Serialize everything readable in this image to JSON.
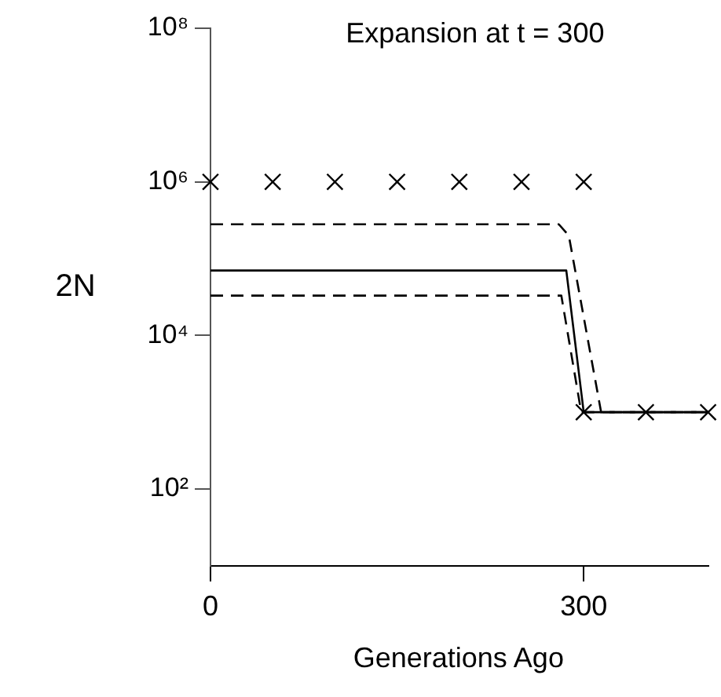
{
  "chart_data": {
    "type": "line",
    "title": "Expansion at t = 300",
    "xlabel": "Generations Ago",
    "ylabel": "2N",
    "log": "y",
    "grid": false,
    "legend": false,
    "xlim": [
      0,
      400
    ],
    "xticks": [
      0,
      300
    ],
    "ylim": [
      10,
      100000000
    ],
    "yticks": [
      {
        "value": 100,
        "label": "10²"
      },
      {
        "value": 10000,
        "label": "10⁴"
      },
      {
        "value": 1000000,
        "label": "10⁶"
      },
      {
        "value": 100000000,
        "label": "10⁸"
      }
    ],
    "series": [
      {
        "type": "scatter",
        "marker": "cross",
        "color": "#000000",
        "x": [
          0,
          50,
          100,
          150,
          200,
          250,
          300,
          300,
          350,
          400
        ],
        "values": [
          1000000,
          1000000,
          1000000,
          1000000,
          1000000,
          1000000,
          1000000,
          1000,
          1000,
          1000
        ]
      },
      {
        "type": "line",
        "marker": "none",
        "line_style": "solid",
        "color": "#000000",
        "x": [
          0,
          276,
          286,
          300,
          400
        ],
        "values": [
          70000,
          70000,
          70000,
          1000,
          1000
        ]
      },
      {
        "type": "line",
        "marker": "none",
        "line_style": "dashed",
        "color": "#000000",
        "x": [
          0,
          280,
          288,
          314,
          400
        ],
        "values": [
          280000,
          280000,
          200000,
          1000,
          1000
        ]
      },
      {
        "type": "line",
        "marker": "none",
        "line_style": "dashed",
        "color": "#000000",
        "x": [
          0,
          282,
          298,
          400
        ],
        "values": [
          33000,
          33000,
          1000,
          1000
        ]
      }
    ]
  }
}
